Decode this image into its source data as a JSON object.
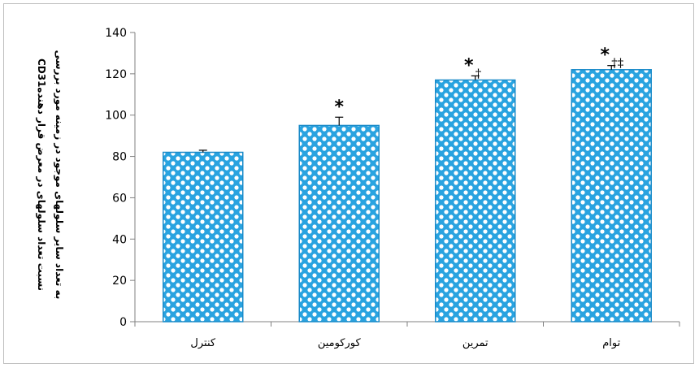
{
  "chart_data": {
    "type": "bar",
    "categories": [
      "کنترل",
      "کورکومین",
      "تمرین",
      "توام"
    ],
    "values": [
      82,
      95,
      117,
      122
    ],
    "errors": [
      1,
      4,
      2,
      2
    ],
    "annotations": [
      {
        "star": "",
        "daggers": ""
      },
      {
        "star": "*",
        "daggers": ""
      },
      {
        "star": "*",
        "daggers": "†"
      },
      {
        "star": "*",
        "daggers": "†‡"
      }
    ],
    "ylabel_line1": "CD31نسبت تعداد سلولهای در معرض قرار دهنده",
    "ylabel_line2": "به تعداد سایر سلولهای موجود در زمینه مورد بررسی",
    "ylim": [
      0,
      140
    ],
    "yticks": [
      0,
      20,
      40,
      60,
      80,
      100,
      120,
      140
    ],
    "grid": false,
    "bar_color": "#29a3e0",
    "pattern_color": "#ffffff"
  }
}
